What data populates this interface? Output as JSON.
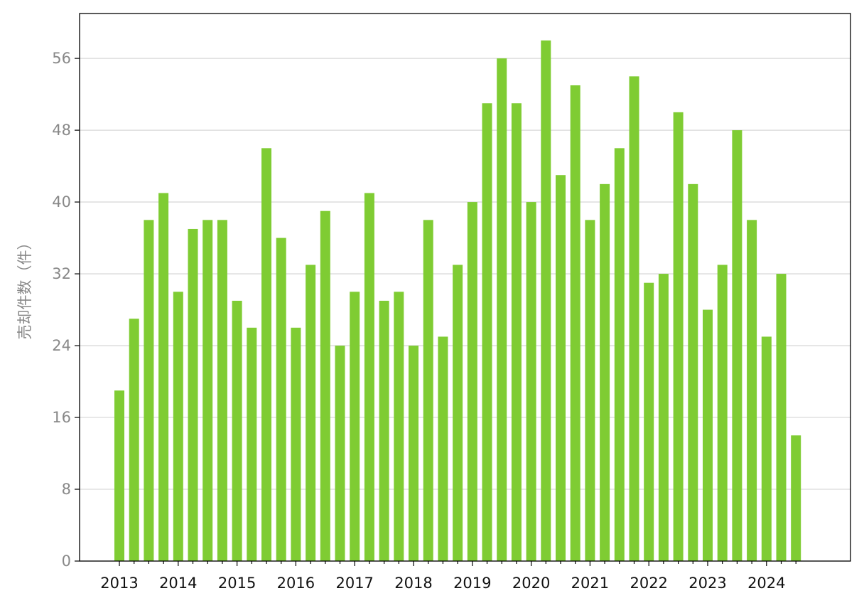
{
  "chart_data": {
    "type": "bar",
    "y_label": "売却件数（件）",
    "categories": [
      "2013",
      null,
      null,
      null,
      "2014",
      null,
      null,
      null,
      "2015",
      null,
      null,
      null,
      "2016",
      null,
      null,
      null,
      "2017",
      null,
      null,
      null,
      "2018",
      null,
      null,
      null,
      "2019",
      null,
      null,
      null,
      "2020",
      null,
      null,
      null,
      "2021",
      null,
      null,
      null,
      "2022",
      null,
      null,
      null,
      "2023",
      null,
      null,
      null,
      "2024",
      null,
      null
    ],
    "values": [
      19,
      27,
      38,
      41,
      30,
      37,
      38,
      38,
      29,
      26,
      46,
      36,
      26,
      33,
      39,
      24,
      30,
      41,
      29,
      30,
      24,
      38,
      25,
      33,
      40,
      51,
      56,
      51,
      40,
      58,
      43,
      53,
      38,
      42,
      46,
      54,
      31,
      32,
      50,
      42,
      28,
      33,
      48,
      38,
      25,
      32,
      14
    ],
    "color": "#7fcc33",
    "ylim": [
      0,
      61
    ],
    "yticks": [
      0,
      8,
      16,
      24,
      32,
      40,
      48,
      56
    ],
    "grid": true
  }
}
